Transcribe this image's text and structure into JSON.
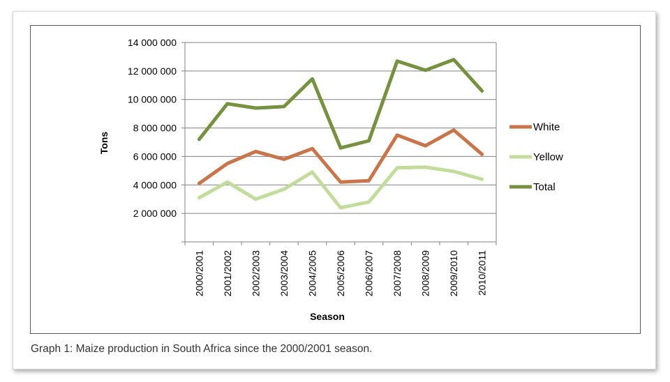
{
  "caption": "Graph 1: Maize production in South Africa since the 2000/2001 season.",
  "chart_data": {
    "type": "line",
    "xlabel": "Season",
    "ylabel": "Tons",
    "ylim": [
      0,
      14000000
    ],
    "ytick_step": 2000000,
    "grid": true,
    "legend_position": "right",
    "categories": [
      "2000/2001",
      "2001/2002",
      "2002/2003",
      "2003/2004",
      "2004/2005",
      "2005/2006",
      "2006/2007",
      "2007/2008",
      "2008/2009",
      "2009/2010",
      "2010/2011"
    ],
    "ytick_labels": [
      "2 000 000",
      "4 000 000",
      "6 000 000",
      "8 000 000",
      "10 000 000",
      "12 000 000",
      "14 000 000"
    ],
    "series": [
      {
        "name": "White",
        "color": "#c8754b",
        "values": [
          4100000,
          5500000,
          6350000,
          5800000,
          6550000,
          4200000,
          4300000,
          7500000,
          6750000,
          7850000,
          6150000
        ]
      },
      {
        "name": "Yellow",
        "color": "#c2dc9c",
        "values": [
          3100000,
          4200000,
          3000000,
          3700000,
          4900000,
          2400000,
          2800000,
          5200000,
          5250000,
          4950000,
          4400000
        ]
      },
      {
        "name": "Total",
        "color": "#76913f",
        "values": [
          7200000,
          9700000,
          9400000,
          9500000,
          11450000,
          6600000,
          7100000,
          12700000,
          12050000,
          12800000,
          10600000
        ]
      }
    ]
  }
}
